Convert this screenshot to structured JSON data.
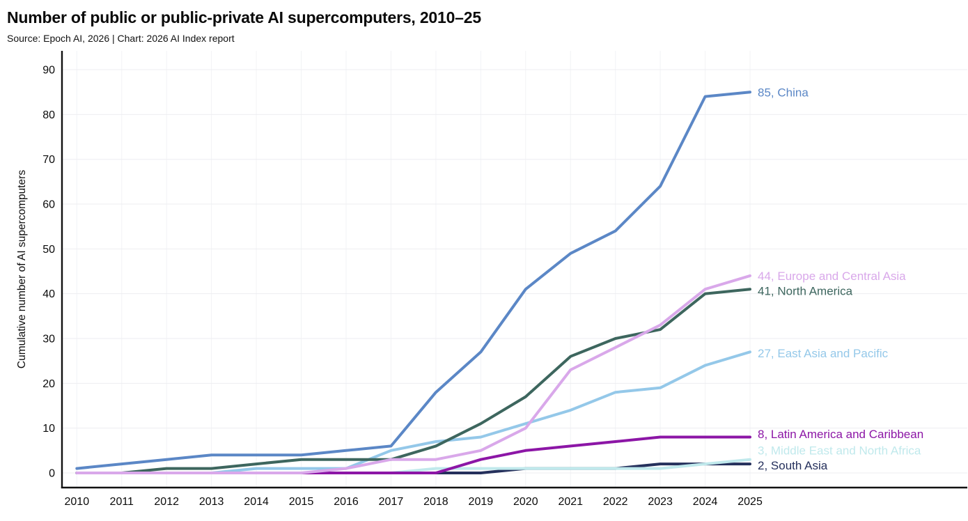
{
  "title": "Number of public or public-private AI supercomputers, 2010–25",
  "subtitle": "Source: Epoch AI, 2026 | Chart: 2026 AI Index report",
  "chart_data": {
    "type": "line",
    "title": "Number of public or public-private AI supercomputers, 2010–25",
    "subtitle": "Source: Epoch AI, 2026 | Chart: 2026 AI Index report",
    "xlabel": "",
    "ylabel": "Cumulative number of AI supercomputers",
    "x": [
      2010,
      2011,
      2012,
      2013,
      2014,
      2015,
      2016,
      2017,
      2018,
      2019,
      2020,
      2021,
      2022,
      2023,
      2024,
      2025
    ],
    "yticks": [
      0,
      10,
      20,
      30,
      40,
      50,
      60,
      70,
      80,
      90
    ],
    "ylim": [
      0,
      90
    ],
    "grid": true,
    "legend_position": "end-of-line-labels",
    "series": [
      {
        "key": "south_asia",
        "name": "South Asia",
        "end_label": "2, South Asia",
        "color": "#25305c",
        "values": [
          0,
          0,
          0,
          0,
          0,
          0,
          0,
          0,
          0,
          0,
          1,
          1,
          1,
          2,
          2,
          2
        ]
      },
      {
        "key": "middle_east_north_africa",
        "name": "Middle East and North Africa",
        "end_label": "3, Middle East and North Africa",
        "color": "#c0e9ec",
        "values": [
          0,
          0,
          0,
          0,
          0,
          0,
          0,
          0,
          1,
          1,
          1,
          1,
          1,
          1,
          2,
          3
        ]
      },
      {
        "key": "latin_america_caribbean",
        "name": "Latin America and Caribbean",
        "end_label": "8, Latin America and Caribbean",
        "color": "#8c16a6",
        "values": [
          0,
          0,
          0,
          0,
          0,
          0,
          0,
          0,
          0,
          3,
          5,
          6,
          7,
          8,
          8,
          8
        ]
      },
      {
        "key": "east_asia_pacific",
        "name": "East Asia and Pacific",
        "end_label": "27, East Asia and Pacific",
        "color": "#94c8e9",
        "values": [
          0,
          0,
          0,
          0,
          1,
          1,
          1,
          5,
          7,
          8,
          11,
          14,
          18,
          19,
          24,
          27
        ]
      },
      {
        "key": "north_america",
        "name": "North America",
        "end_label": "41, North America",
        "color": "#3d665e",
        "values": [
          0,
          0,
          1,
          1,
          2,
          3,
          3,
          3,
          6,
          11,
          17,
          26,
          30,
          32,
          40,
          41
        ]
      },
      {
        "key": "europe_central_asia",
        "name": "Europe and Central Asia",
        "end_label": "44, Europe and Central Asia",
        "color": "#d9a8ea",
        "values": [
          0,
          0,
          0,
          0,
          0,
          0,
          1,
          3,
          3,
          5,
          10,
          23,
          28,
          33,
          41,
          44
        ]
      },
      {
        "key": "china",
        "name": "China",
        "end_label": "85, China",
        "color": "#5b87c6",
        "values": [
          1,
          2,
          3,
          4,
          4,
          4,
          5,
          6,
          18,
          27,
          41,
          49,
          54,
          64,
          84,
          85
        ]
      }
    ]
  }
}
